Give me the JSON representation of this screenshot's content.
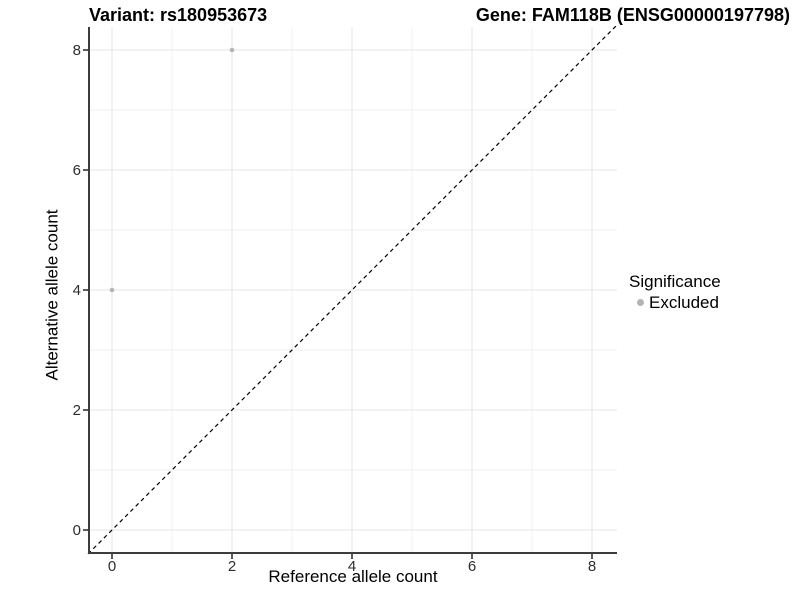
{
  "header": {
    "variant_title": "Variant: rs180953673",
    "gene_title": "Gene: FAM118B (ENSG00000197798)"
  },
  "colors": {
    "background": "#ffffff",
    "grid_major": "#e4e4e4",
    "grid_minor": "#f1f1f1",
    "axis_line": "#3c3c3c",
    "tick": "#333333",
    "tick_label": "#2e2e2e",
    "dashed_line": "#000000",
    "excluded_point": "#b4b4b4"
  },
  "chart_data": {
    "type": "scatter",
    "title_left": "Variant: rs180953673",
    "title_right": "Gene: FAM118B (ENSG00000197798)",
    "xlabel": "Reference allele count",
    "ylabel": "Alternative allele count",
    "xlim": [
      -0.4,
      8.4
    ],
    "ylim": [
      -0.4,
      8.4
    ],
    "x_ticks": [
      0,
      2,
      4,
      6,
      8
    ],
    "y_ticks": [
      0,
      2,
      4,
      6,
      8
    ],
    "minor_gridlines_x": [
      1,
      3,
      5,
      7
    ],
    "minor_gridlines_y": [
      1,
      3,
      5,
      7
    ],
    "grid": true,
    "series": [
      {
        "name": "Excluded",
        "color": "#b4b4b4",
        "points": [
          {
            "x": 0,
            "y": 4
          },
          {
            "x": 2,
            "y": 8
          }
        ]
      }
    ],
    "identity_line": {
      "type": "abline",
      "slope": 1,
      "intercept": 0,
      "style": "dashed",
      "from": [
        -0.4,
        -0.4
      ],
      "to": [
        8.4,
        8.4
      ]
    },
    "legend": {
      "title": "Significance",
      "position": "right",
      "entries": [
        {
          "label": "Excluded",
          "color": "#b4b4b4"
        }
      ]
    }
  }
}
